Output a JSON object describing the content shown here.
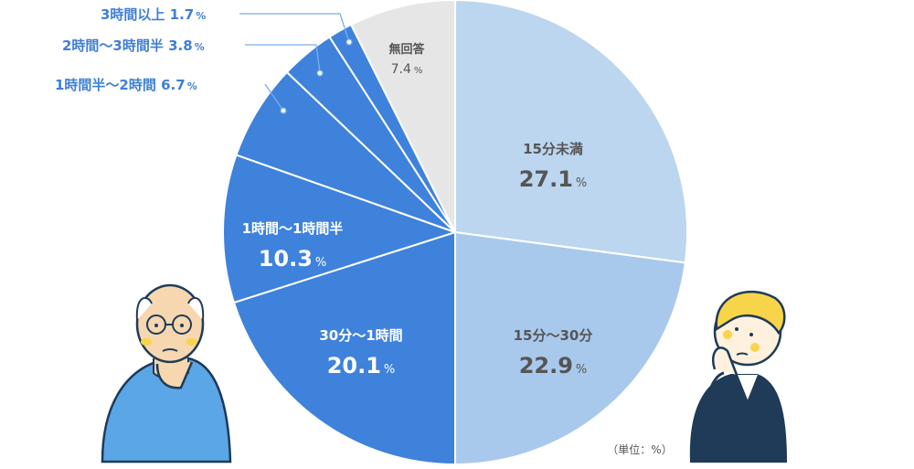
{
  "chart_data": {
    "type": "pie",
    "title": "",
    "unit_note": "（単位：%）",
    "slices": [
      {
        "label": "15分未満",
        "value": 27.1,
        "value_text": "27.1",
        "color": "#bcd6f0",
        "text_color": "#555555",
        "placement": "inside"
      },
      {
        "label": "15分～30分",
        "value": 22.9,
        "value_text": "22.9",
        "color": "#a9c9ec",
        "text_color": "#555555",
        "placement": "inside"
      },
      {
        "label": "30分～1時間",
        "value": 20.1,
        "value_text": "20.1",
        "color": "#3f82dc",
        "text_color": "#ffffff",
        "placement": "inside"
      },
      {
        "label": "1時間～1時間半",
        "value": 10.3,
        "value_text": "10.3",
        "color": "#3f82dc",
        "text_color": "#ffffff",
        "placement": "inside"
      },
      {
        "label": "1時間半～2時間",
        "value": 6.7,
        "value_text": "6.7",
        "color": "#3f82dc",
        "text_color": "#3f7fd4",
        "placement": "outside"
      },
      {
        "label": "2時間～3時間半",
        "value": 3.8,
        "value_text": "3.8",
        "color": "#3f82dc",
        "text_color": "#3f7fd4",
        "placement": "outside"
      },
      {
        "label": "3時間以上",
        "value": 1.7,
        "value_text": "1.7",
        "color": "#3f82dc",
        "text_color": "#3f7fd4",
        "placement": "outside"
      },
      {
        "label": "無回答",
        "value": 7.4,
        "value_text": "7.4",
        "color": "#e6e6e6",
        "text_color": "#555555",
        "placement": "inside"
      }
    ],
    "percent_sign": "%",
    "start_angle_deg": 0,
    "direction": "clockwise",
    "divider_color": "#ffffff"
  },
  "illustrations": [
    {
      "name": "older-man-illustration",
      "description_icon": "thinking-older-man"
    },
    {
      "name": "young-person-illustration",
      "description_icon": "thinking-young-person"
    }
  ]
}
